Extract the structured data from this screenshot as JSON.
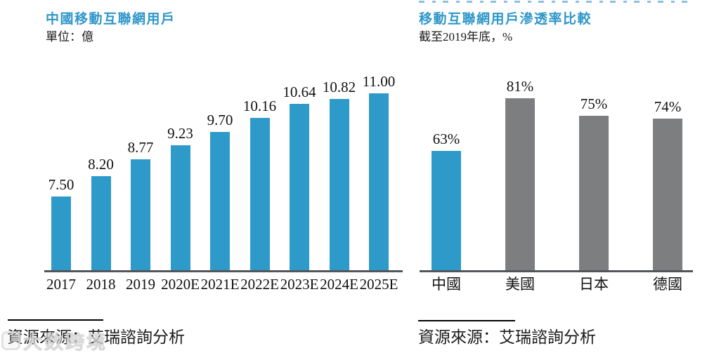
{
  "watermark": {
    "text": "大数跨境"
  },
  "chart_data": [
    {
      "type": "bar",
      "title": "中國移動互聯網用戶",
      "subtitle": "單位：億",
      "source": "資源來源：艾瑞諮詢分析",
      "categories": [
        "2017",
        "2018",
        "2019",
        "2020E",
        "2021E",
        "2022E",
        "2023E",
        "2024E",
        "2025E"
      ],
      "values": [
        7.5,
        8.2,
        8.77,
        9.23,
        9.7,
        10.16,
        10.64,
        10.82,
        11.0
      ],
      "value_labels": [
        "7.50",
        "8.20",
        "8.77",
        "9.23",
        "9.70",
        "10.16",
        "10.64",
        "10.82",
        "11.00"
      ],
      "bar_color": "#2e9aca",
      "ylabel": "億",
      "ylim": [
        5,
        11.5
      ],
      "grid": false,
      "legend": "none"
    },
    {
      "type": "bar",
      "title": "移動互聯網用戶滲透率比較",
      "subtitle": "截至2019年底，%",
      "source": "資源來源：艾瑞諮詢分析",
      "categories": [
        "中國",
        "美國",
        "日本",
        "德國"
      ],
      "values": [
        63,
        81,
        75,
        74
      ],
      "value_labels": [
        "63%",
        "81%",
        "75%",
        "74%"
      ],
      "bar_colors": [
        "#2e9aca",
        "#7d7e80",
        "#7d7e80",
        "#7d7e80"
      ],
      "ylabel": "%",
      "ylim": [
        22,
        88
      ],
      "grid": false,
      "legend": "none"
    }
  ],
  "colors": {
    "accent_blue": "#2e96c9",
    "bar_blue": "#2e9aca",
    "bar_gray": "#7d7e80",
    "axis": "#54555a"
  }
}
